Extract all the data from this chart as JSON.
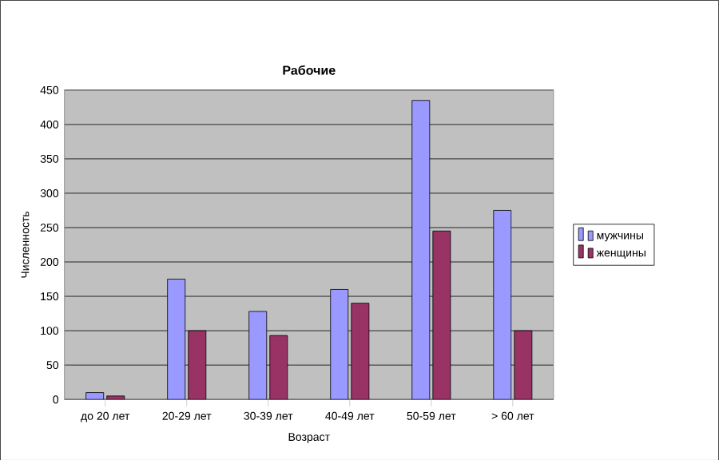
{
  "chart_data": {
    "type": "bar",
    "title": "Рабочие",
    "xlabel": "Возраст",
    "ylabel": "Численность",
    "categories": [
      "до 20 лет",
      "20-29 лет",
      "30-39 лет",
      "40-49 лет",
      "50-59 лет",
      "> 60 лет"
    ],
    "series": [
      {
        "name": "мужчины",
        "color": "#9999ff",
        "values": [
          10,
          175,
          128,
          160,
          435,
          275
        ]
      },
      {
        "name": "женщины",
        "color": "#993366",
        "values": [
          5,
          100,
          93,
          140,
          245,
          100
        ]
      }
    ],
    "ylim": [
      0,
      450
    ],
    "yticks": [
      0,
      50,
      100,
      150,
      200,
      250,
      300,
      350,
      400,
      450
    ],
    "grid": "y",
    "legend": "right"
  }
}
